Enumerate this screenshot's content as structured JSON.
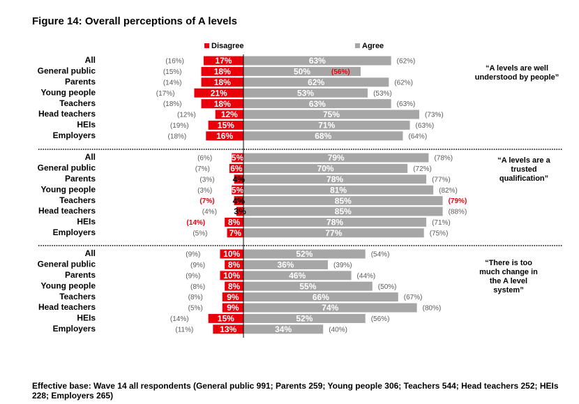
{
  "title": "Figure 14: Overall perceptions of A levels",
  "footer": "Effective base: Wave 14 all respondents (General public 991; Parents 259; Young people 306; Teachers 544; Head teachers 252; HEIs 228; Employers 265)",
  "colors": {
    "disagree": "#e8000b",
    "agree": "#a6a6a6",
    "prev_highlight": "#e8000b",
    "prev_normal": "#595959"
  },
  "chart_data": {
    "type": "bar",
    "orientation": "horizontal-diverging",
    "legend": {
      "position": "top",
      "entries": [
        "Disagree",
        "Agree"
      ]
    },
    "categories": [
      "All",
      "General public",
      "Parents",
      "Young people",
      "Teachers",
      "Head teachers",
      "HEIs",
      "Employers"
    ],
    "panels": [
      {
        "quote": "“A levels are well understood by people”",
        "disagree": [
          17,
          18,
          18,
          21,
          18,
          12,
          15,
          16
        ],
        "disagree_labels": [
          "17%",
          "18%",
          "18%",
          "21%",
          "18%",
          "12%",
          "15%",
          "16%"
        ],
        "disagree_prev": [
          "(16%)",
          "(15%)",
          "(14%)",
          "(17%)",
          "(18%)",
          "(12%)",
          "(19%)",
          "(18%)"
        ],
        "disagree_prev_highlight": [
          false,
          false,
          false,
          false,
          false,
          false,
          false,
          false
        ],
        "agree": [
          63,
          50,
          62,
          53,
          63,
          75,
          71,
          68
        ],
        "agree_labels": [
          "63%",
          "50%",
          "62%",
          "53%",
          "63%",
          "75%",
          "71%",
          "68%"
        ],
        "agree_prev": [
          "(62%)",
          "(56%)",
          "(62%)",
          "(53%)",
          "(63%)",
          "(73%)",
          "(63%)",
          "(64%)"
        ],
        "agree_prev_highlight": [
          false,
          true,
          false,
          false,
          false,
          false,
          false,
          false
        ]
      },
      {
        "quote": "“A levels are a trusted qualification”",
        "disagree": [
          5,
          6,
          4,
          5,
          4,
          3,
          8,
          7
        ],
        "disagree_labels": [
          "5%",
          "6%",
          "4%",
          "5%",
          "4%",
          "3%",
          "8%",
          "7%"
        ],
        "disagree_prev": [
          "(6%)",
          "(7%)",
          "(3%)",
          "(3%)",
          "(7%)",
          "(4%)",
          "(14%)",
          "(5%)"
        ],
        "disagree_prev_highlight": [
          false,
          false,
          false,
          false,
          true,
          false,
          true,
          false
        ],
        "agree": [
          79,
          70,
          78,
          81,
          85,
          85,
          78,
          77
        ],
        "agree_labels": [
          "79%",
          "70%",
          "78%",
          "81%",
          "85%",
          "85%",
          "78%",
          "77%"
        ],
        "agree_prev": [
          "(78%)",
          "(72%)",
          "(77%)",
          "(82%)",
          "(79%)",
          "(88%)",
          "(71%)",
          "(75%)"
        ],
        "agree_prev_highlight": [
          false,
          false,
          false,
          false,
          true,
          false,
          false,
          false
        ]
      },
      {
        "quote": "“There is too much change in the A level system”",
        "disagree": [
          10,
          8,
          10,
          8,
          9,
          9,
          15,
          13
        ],
        "disagree_labels": [
          "10%",
          "8%",
          "10%",
          "8%",
          "9%",
          "9%",
          "15%",
          "13%"
        ],
        "disagree_prev": [
          "(9%)",
          "(9%)",
          "(9%)",
          "(8%)",
          "(8%)",
          "(5%)",
          "(14%)",
          "(11%)"
        ],
        "disagree_prev_highlight": [
          false,
          false,
          false,
          false,
          false,
          false,
          false,
          false
        ],
        "agree": [
          52,
          36,
          46,
          55,
          66,
          74,
          52,
          34
        ],
        "agree_labels": [
          "52%",
          "36%",
          "46%",
          "55%",
          "66%",
          "74%",
          "52%",
          "34%"
        ],
        "agree_prev": [
          "(54%)",
          "(39%)",
          "(44%)",
          "(50%)",
          "(67%)",
          "(80%)",
          "(56%)",
          "(40%)"
        ],
        "agree_prev_highlight": [
          false,
          false,
          false,
          false,
          false,
          false,
          false,
          false
        ]
      }
    ]
  }
}
